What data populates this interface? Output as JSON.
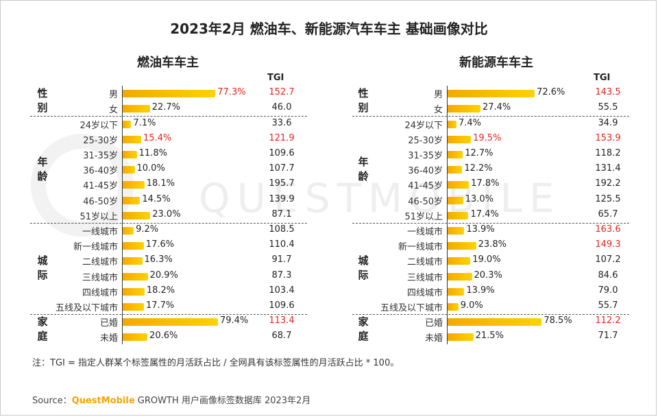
{
  "title": "2023年2月 燃油车、新能源汽车车主 基础画像对比",
  "tgi_header": "TGI",
  "note": "注：TGI = 指定人群某个标签属性的月活跃占比 / 全网具有该标签属性的月活跃占比 * 100。",
  "source": {
    "prefix": "Source：",
    "brand": "QuestMobile",
    "rest": "GROWTH 用户画像标签数据库 2023年2月"
  },
  "watermark": "QUESTMOBILE",
  "colors": {
    "bar_start": "#f5a800",
    "bar_end": "#ffd200",
    "highlight": "#e8231b",
    "brand": "#f5a400"
  },
  "groups": [
    {
      "label": "性别",
      "count": 2
    },
    {
      "label": "年龄",
      "count": 7
    },
    {
      "label": "城际",
      "count": 6
    },
    {
      "label": "家庭",
      "count": 2
    }
  ],
  "chart_data": [
    {
      "type": "bar",
      "title": "燃油车车主",
      "xlim": [
        0,
        100
      ],
      "categories": [
        "男",
        "女",
        "24岁以下",
        "25-30岁",
        "31-35岁",
        "36-40岁",
        "41-45岁",
        "46-50岁",
        "51岁以上",
        "一线城市",
        "新一线城市",
        "二线城市",
        "三线城市",
        "四线城市",
        "五线及以下城市",
        "已婚",
        "未婚"
      ],
      "values": [
        77.3,
        22.7,
        7.1,
        15.4,
        11.8,
        10.0,
        18.1,
        14.5,
        23.0,
        9.2,
        17.6,
        16.3,
        20.9,
        18.2,
        17.7,
        79.4,
        20.6
      ],
      "value_labels": [
        "77.3%",
        "22.7%",
        "7.1%",
        "15.4%",
        "11.8%",
        "10.0%",
        "18.1%",
        "14.5%",
        "23.0%",
        "9.2%",
        "17.6%",
        "16.3%",
        "20.9%",
        "18.2%",
        "17.7%",
        "79.4%",
        "20.6%"
      ],
      "tgi": [
        "152.7",
        "46.0",
        "33.6",
        "121.9",
        "109.6",
        "107.7",
        "195.7",
        "139.9",
        "87.1",
        "108.5",
        "110.4",
        "91.7",
        "87.3",
        "103.4",
        "109.6",
        "113.4",
        "68.7"
      ],
      "pct_highlight": [
        true,
        false,
        false,
        true,
        false,
        false,
        false,
        false,
        false,
        false,
        false,
        false,
        false,
        false,
        false,
        false,
        false
      ],
      "tgi_highlight": [
        true,
        false,
        false,
        true,
        false,
        false,
        false,
        false,
        false,
        false,
        false,
        false,
        false,
        false,
        false,
        true,
        false
      ]
    },
    {
      "type": "bar",
      "title": "新能源车车主",
      "xlim": [
        0,
        100
      ],
      "categories": [
        "男",
        "女",
        "24岁以下",
        "25-30岁",
        "31-35岁",
        "36-40岁",
        "41-45岁",
        "46-50岁",
        "51岁以上",
        "一线城市",
        "新一线城市",
        "二线城市",
        "三线城市",
        "四线城市",
        "五线及以下城市",
        "已婚",
        "未婚"
      ],
      "values": [
        72.6,
        27.4,
        7.4,
        19.5,
        12.7,
        12.2,
        17.8,
        13.0,
        17.4,
        13.9,
        23.8,
        19.0,
        20.3,
        13.9,
        9.0,
        78.5,
        21.5
      ],
      "value_labels": [
        "72.6%",
        "27.4%",
        "7.4%",
        "19.5%",
        "12.7%",
        "12.2%",
        "17.8%",
        "13.0%",
        "17.4%",
        "13.9%",
        "23.8%",
        "19.0%",
        "20.3%",
        "13.9%",
        "9.0%",
        "78.5%",
        "21.5%"
      ],
      "tgi": [
        "143.5",
        "55.5",
        "34.9",
        "153.9",
        "118.2",
        "131.4",
        "192.2",
        "125.5",
        "65.7",
        "163.6",
        "149.3",
        "107.2",
        "84.6",
        "79.0",
        "55.7",
        "112.2",
        "71.7"
      ],
      "pct_highlight": [
        false,
        false,
        false,
        true,
        false,
        false,
        false,
        false,
        false,
        false,
        false,
        false,
        false,
        false,
        false,
        false,
        false
      ],
      "tgi_highlight": [
        true,
        false,
        false,
        true,
        false,
        false,
        false,
        false,
        false,
        true,
        true,
        false,
        false,
        false,
        false,
        true,
        false
      ]
    }
  ]
}
